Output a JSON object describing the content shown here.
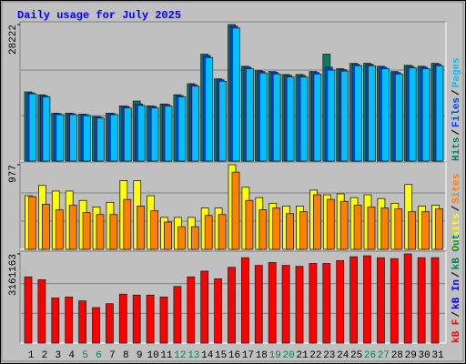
{
  "chart_data": {
    "type": "bar",
    "title": "Daily usage for July 2025",
    "legend_separator": "/",
    "categories": [
      "1",
      "2",
      "3",
      "4",
      "5",
      "6",
      "7",
      "8",
      "9",
      "10",
      "11",
      "12",
      "13",
      "14",
      "15",
      "16",
      "17",
      "18",
      "19",
      "20",
      "21",
      "22",
      "23",
      "24",
      "25",
      "26",
      "27",
      "28",
      "29",
      "30",
      "31"
    ],
    "category_colors": [
      "#000000",
      "#000000",
      "#000000",
      "#000000",
      "#00805c",
      "#00805c",
      "#000000",
      "#000000",
      "#000000",
      "#000000",
      "#000000",
      "#00805c",
      "#00805c",
      "#000000",
      "#000000",
      "#000000",
      "#000000",
      "#000000",
      "#00805c",
      "#00805c",
      "#000000",
      "#000000",
      "#000000",
      "#000000",
      "#000000",
      "#00805c",
      "#00805c",
      "#000000",
      "#000000",
      "#000000",
      "#000000"
    ],
    "panels": [
      {
        "ylim": [
          0,
          28222
        ],
        "yticks": [
          28222
        ],
        "series": [
          {
            "name": "Hits",
            "color": "#00805c",
            "values": [
              14300,
              13700,
              9900,
              9900,
              9700,
              9200,
              9900,
              11400,
              12400,
              11400,
              11800,
              13700,
              16000,
              22100,
              17000,
              28222,
              19600,
              18700,
              18500,
              17900,
              17900,
              18500,
              22100,
              19100,
              20200,
              20200,
              19600,
              18500,
              19800,
              19600,
              20200
            ]
          },
          {
            "name": "Files",
            "color": "#0040ff",
            "values": [
              14100,
              13500,
              9800,
              9800,
              9600,
              9100,
              9800,
              11300,
              11800,
              11300,
              11700,
              13500,
              15800,
              21800,
              16800,
              27900,
              19400,
              18500,
              18300,
              17700,
              17700,
              18300,
              19400,
              18900,
              20000,
              20000,
              19400,
              18300,
              19600,
              19400,
              20000
            ]
          },
          {
            "name": "Pages",
            "color": "#00c0ff",
            "values": [
              13900,
              13300,
              9600,
              9600,
              9400,
              8900,
              9600,
              11000,
              11500,
              11000,
              11400,
              13300,
              15500,
              21400,
              16500,
              27500,
              19100,
              18200,
              18000,
              17400,
              17400,
              18000,
              18800,
              18600,
              19700,
              19700,
              19100,
              18000,
              19300,
              19100,
              19700
            ]
          }
        ]
      },
      {
        "ylim": [
          0,
          977
        ],
        "yticks": [
          977
        ],
        "series": [
          {
            "name": "Visits",
            "color": "#ffff00",
            "values": [
              619,
              738,
              673,
              673,
              565,
              489,
              543,
              793,
              793,
              619,
              369,
              369,
              369,
              478,
              478,
              977,
              717,
              597,
              532,
              500,
              500,
              684,
              630,
              641,
              597,
              630,
              586,
              532,
              749,
              500,
              510
            ]
          },
          {
            "name": "Sites",
            "color": "#ff8000",
            "values": [
              608,
              521,
              456,
              510,
              424,
              402,
              402,
              576,
              500,
              445,
              315,
              261,
              261,
              391,
              402,
              891,
              565,
              456,
              478,
              413,
              434,
              630,
              576,
              554,
              510,
              489,
              478,
              467,
              434,
              434,
              467
            ]
          }
        ]
      },
      {
        "ylim": [
          0,
          3161163
        ],
        "yticks": [
          3161163
        ],
        "series": [
          {
            "name": "kB F",
            "color": "#ff0000",
            "values": [
              2345400,
              2243400,
              1597600,
              1631600,
              1495600,
              1257700,
              1393600,
              1733500,
              1699600,
              1699600,
              1631600,
              2005500,
              2345400,
              2549300,
              2277400,
              2685300,
              3025200,
              2753300,
              2855200,
              2753300,
              2719300,
              2821300,
              2821300,
              2923200,
              3059200,
              3093200,
              3025200,
              2991200,
              3161163,
              3025200,
              3025200
            ]
          },
          {
            "name": "kB In",
            "color": "#0000ff",
            "values": [
              0,
              0,
              0,
              0,
              0,
              0,
              0,
              0,
              0,
              0,
              0,
              0,
              0,
              0,
              0,
              0,
              0,
              0,
              0,
              0,
              0,
              0,
              0,
              0,
              0,
              0,
              0,
              0,
              0,
              0,
              0
            ]
          },
          {
            "name": "kB Out",
            "color": "#00805c",
            "values": [
              0,
              0,
              0,
              0,
              0,
              0,
              0,
              0,
              0,
              0,
              0,
              0,
              0,
              0,
              0,
              0,
              0,
              0,
              0,
              0,
              0,
              0,
              0,
              0,
              0,
              0,
              0,
              0,
              0,
              0,
              0
            ]
          }
        ]
      }
    ]
  }
}
